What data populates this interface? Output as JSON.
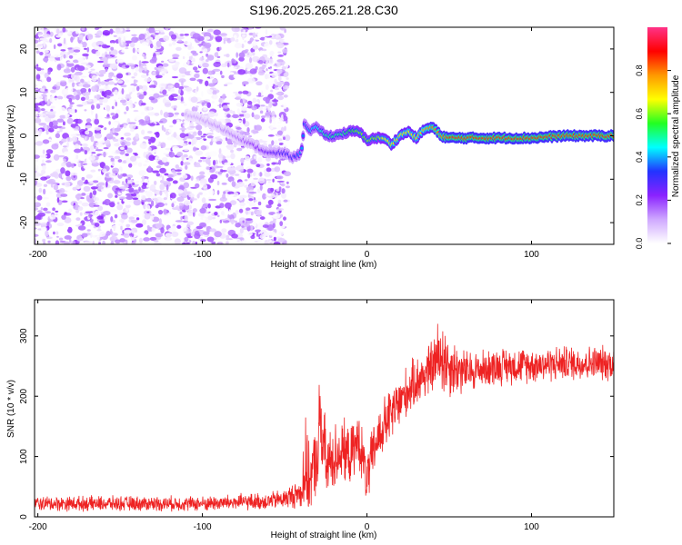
{
  "title": "S196.2025.265.21.28.C30",
  "colors": {
    "axis": "#000000",
    "snr_line": "#ee2222",
    "background": "#ffffff"
  },
  "chart_data": [
    {
      "type": "heatmap",
      "xlabel": "Height of straight line (km)",
      "ylabel": "Frequency (Hz)",
      "xlim": [
        -202,
        150
      ],
      "ylim": [
        -25,
        25
      ],
      "xticks": [
        -200,
        -100,
        0,
        100
      ],
      "xtick_labels": [
        "-200",
        "-100",
        "0",
        "100"
      ],
      "yticks": [
        -20,
        -10,
        0,
        10,
        20
      ],
      "ytick_labels": [
        "-20",
        "-10",
        "0",
        "10",
        "20"
      ],
      "colorbar": {
        "label": "Normalized spectral amplitude",
        "range": [
          0,
          1
        ],
        "ticks": [
          0.0,
          0.2,
          0.4,
          0.6,
          0.8
        ],
        "tick_labels": [
          "0.0",
          "0.2",
          "0.4",
          "0.6",
          "0.8"
        ],
        "stops": [
          "#ffffff",
          "#cfa8ff",
          "#8a22ff",
          "#2233ff",
          "#00ffff",
          "#22ff22",
          "#ffff00",
          "#ff9900",
          "#ff0000",
          "#ff3388"
        ]
      },
      "signal_track": {
        "x": [
          -110,
          -95,
          -80,
          -70,
          -60,
          -50,
          -45,
          -40,
          -38,
          -35,
          -30,
          -25,
          -20,
          -15,
          -10,
          -5,
          0,
          5,
          10,
          15,
          20,
          25,
          30,
          35,
          40,
          45,
          50,
          60,
          80,
          100,
          120,
          150
        ],
        "freq": [
          5,
          3,
          0,
          -2,
          -4,
          -4,
          -5,
          -4,
          3,
          1,
          2,
          0,
          0,
          0.5,
          1,
          1,
          -1,
          -0.5,
          -0.5,
          -2,
          0,
          1,
          -0.5,
          1.5,
          2,
          0,
          -0.5,
          -0.5,
          -0.5,
          -0.5,
          0,
          0
        ],
        "amplitude": [
          0.1,
          0.12,
          0.15,
          0.2,
          0.25,
          0.3,
          0.3,
          0.4,
          0.35,
          0.4,
          0.45,
          0.5,
          0.5,
          0.5,
          0.55,
          0.6,
          0.6,
          0.6,
          0.65,
          0.7,
          0.7,
          0.7,
          0.7,
          0.75,
          0.8,
          0.8,
          0.85,
          0.85,
          0.85,
          0.85,
          0.85,
          0.85
        ]
      },
      "noise_region_x": [
        -200,
        -48
      ]
    },
    {
      "type": "line",
      "xlabel": "Height of straight line (km)",
      "ylabel": "SNR (10 * v/v)",
      "xlim": [
        -202,
        150
      ],
      "ylim": [
        0,
        360
      ],
      "xticks": [
        -200,
        -100,
        0,
        100
      ],
      "xtick_labels": [
        "-200",
        "-100",
        "0",
        "100"
      ],
      "yticks": [
        0,
        100,
        200,
        300
      ],
      "ytick_labels": [
        "0",
        "100",
        "200",
        "300"
      ],
      "series": [
        {
          "name": "SNR",
          "x": [
            -202,
            -180,
            -160,
            -140,
            -120,
            -100,
            -80,
            -60,
            -50,
            -40,
            -38,
            -35,
            -30,
            -28,
            -25,
            -20,
            -15,
            -10,
            -5,
            0,
            5,
            10,
            15,
            20,
            25,
            30,
            35,
            40,
            45,
            50,
            60,
            70,
            80,
            100,
            120,
            140,
            150
          ],
          "y": [
            22,
            22,
            22,
            22,
            22,
            22,
            24,
            26,
            30,
            40,
            80,
            60,
            100,
            160,
            80,
            100,
            110,
            100,
            130,
            60,
            120,
            150,
            170,
            190,
            210,
            225,
            235,
            250,
            270,
            250,
            240,
            245,
            250,
            252,
            255,
            255,
            255
          ],
          "spread": [
            12,
            12,
            12,
            12,
            12,
            12,
            13,
            14,
            16,
            25,
            90,
            50,
            60,
            120,
            60,
            55,
            50,
            45,
            45,
            45,
            45,
            45,
            45,
            45,
            40,
            40,
            40,
            45,
            70,
            50,
            35,
            30,
            30,
            28,
            28,
            28,
            28
          ]
        }
      ]
    }
  ]
}
